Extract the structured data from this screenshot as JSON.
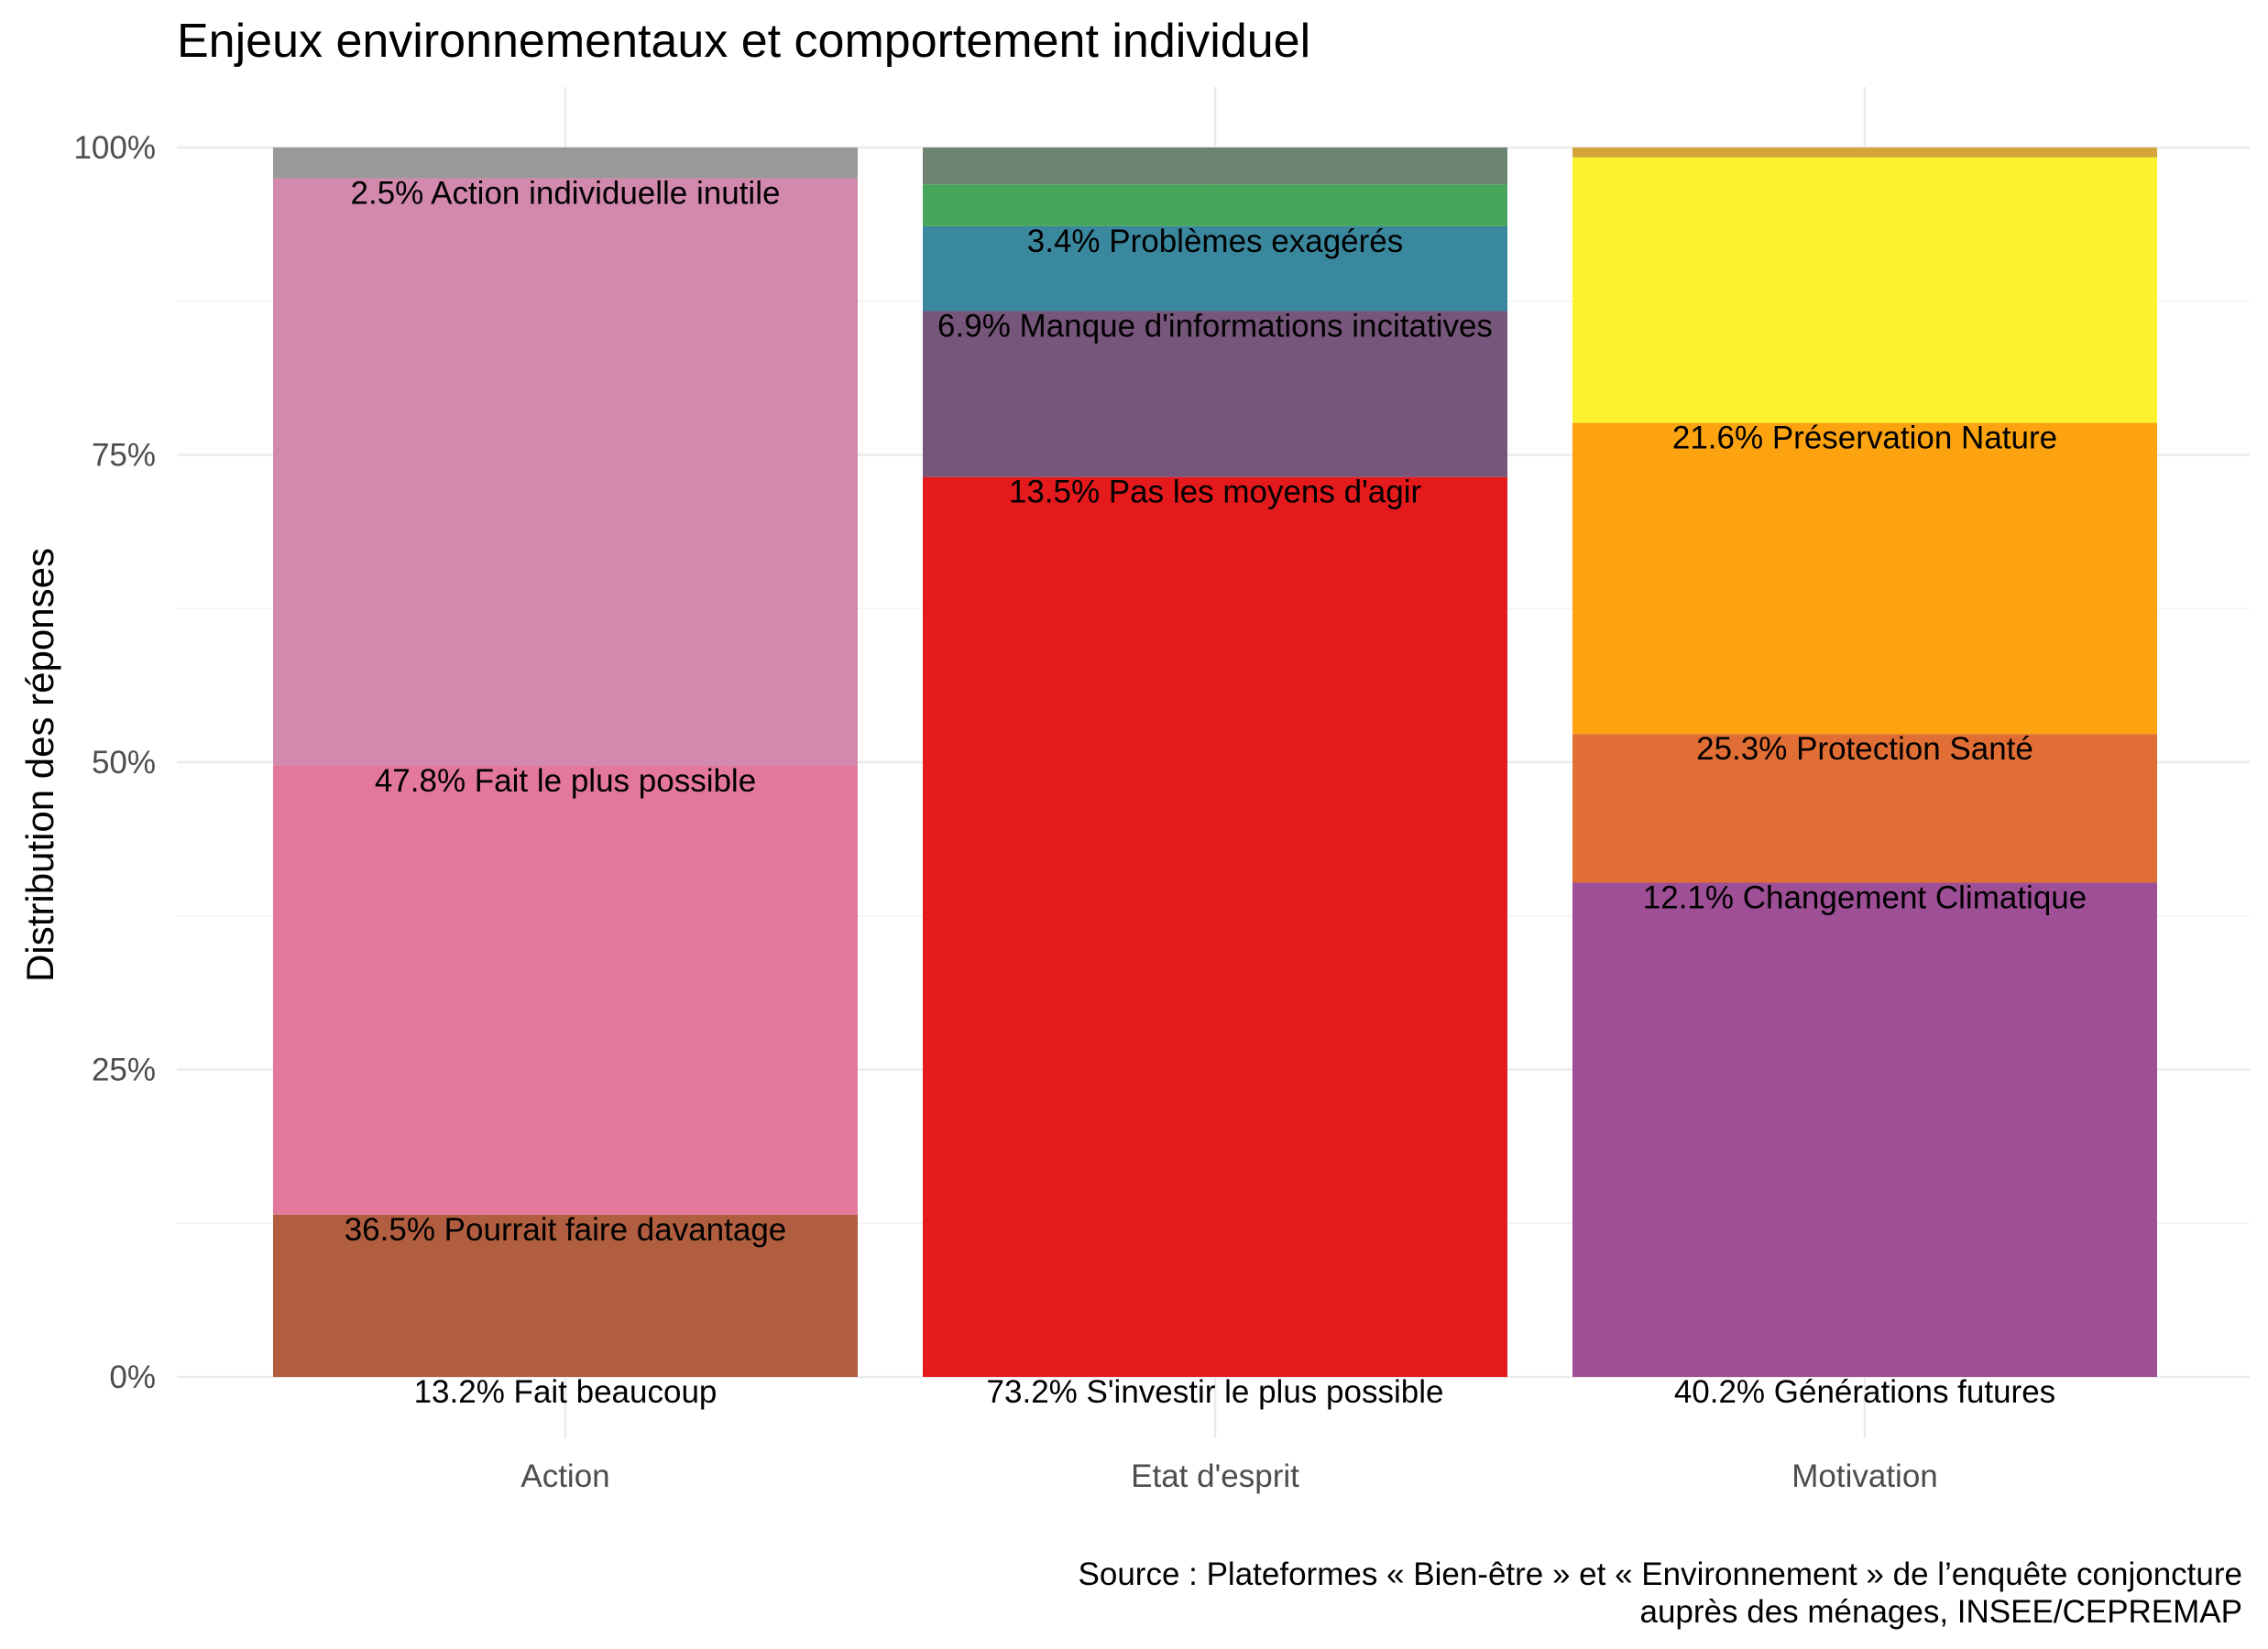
{
  "chart_data": {
    "type": "bar",
    "stacked": true,
    "title": "Enjeux environnementaux et comportement individuel",
    "ylabel": "Distribution des réponses",
    "xlabel": "",
    "ylim": [
      0,
      1
    ],
    "yticks": [
      0,
      0.25,
      0.5,
      0.75,
      1.0
    ],
    "ytick_labels": [
      "0%",
      "25%",
      "50%",
      "75%",
      "100%"
    ],
    "grid": true,
    "legend": "none",
    "categories": [
      "Action",
      "Etat d'esprit",
      "Motivation"
    ],
    "bars": [
      {
        "category": "Action",
        "segments": [
          {
            "value": 13.2,
            "label": "13.2% Fait beaucoup",
            "color": "#B05E3F"
          },
          {
            "value": 36.5,
            "label": "36.5% Pourrait faire davantage",
            "color": "#E3789A"
          },
          {
            "value": 47.8,
            "label": "47.8% Fait le plus possible",
            "color": "#D289AD"
          },
          {
            "value": 2.5,
            "label": "2.5% Action individuelle inutile",
            "color": "#999999"
          }
        ]
      },
      {
        "category": "Etat d'esprit",
        "segments": [
          {
            "value": 73.2,
            "label": "73.2% S'investir le plus possible",
            "color": "#E41A1C"
          },
          {
            "value": 13.5,
            "label": "13.5% Pas les moyens d'agir",
            "color": "#77567B"
          },
          {
            "value": 6.9,
            "label": "6.9% Manque d'informations incitatives",
            "color": "#3A889E"
          },
          {
            "value": 3.4,
            "label": "3.4% Problèmes exagérés",
            "color": "#48A55C"
          },
          {
            "value": 3.0,
            "label": "",
            "color": "#6E8472"
          }
        ]
      },
      {
        "category": "Motivation",
        "segments": [
          {
            "value": 40.2,
            "label": "40.2% Générations futures",
            "color": "#9E4F96"
          },
          {
            "value": 12.1,
            "label": "12.1% Changement Climatique",
            "color": "#E06E35"
          },
          {
            "value": 25.3,
            "label": "25.3% Protection Santé",
            "color": "#FCA30F"
          },
          {
            "value": 21.6,
            "label": "21.6% Préservation Nature",
            "color": "#FDF22E"
          },
          {
            "value": 0.8,
            "label": "",
            "color": "#D3A53A"
          }
        ]
      }
    ],
    "caption": [
      "Source : Plateformes « Bien-être » et « Environnement » de l’enquête conjoncture",
      "auprès des ménages, INSEE/CEPREMAP"
    ]
  }
}
